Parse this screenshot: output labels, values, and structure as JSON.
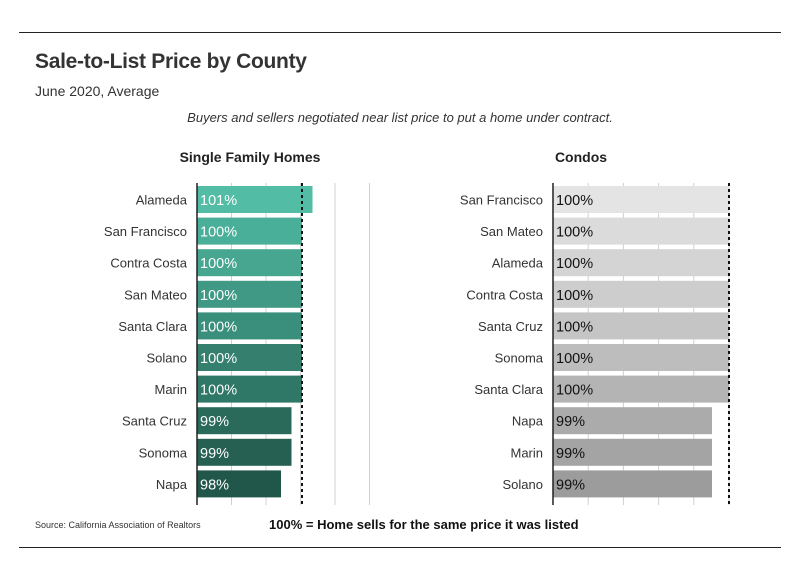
{
  "header": {
    "title": "Sale-to-List Price by County",
    "subtitle": "June 2020, Average",
    "note": "Buyers and sellers negotiated near list price to put a home under contract."
  },
  "footer": {
    "source": "Source:  California Association of Realtors",
    "legend_note": "100% = Home sells for the same price it was listed"
  },
  "chart_data": [
    {
      "type": "bar",
      "orientation": "horizontal",
      "title": "Single Family Homes",
      "categories": [
        "Alameda",
        "San Francisco",
        "Contra Costa",
        "San Mateo",
        "Santa Clara",
        "Solano",
        "Marin",
        "Santa Cruz",
        "Sonoma",
        "Napa"
      ],
      "values": [
        101,
        100,
        100,
        100,
        100,
        100,
        100,
        99,
        99,
        98
      ],
      "value_labels": [
        "101%",
        "100%",
        "100%",
        "100%",
        "100%",
        "100%",
        "100%",
        "99%",
        "99%",
        "98%"
      ],
      "reference_line": 100,
      "colors": [
        "#52bca5",
        "#4aaf98",
        "#46a690",
        "#3f9985",
        "#3a8f7c",
        "#357f6e",
        "#2f7867",
        "#2a6a5b",
        "#266052",
        "#21574a"
      ]
    },
    {
      "type": "bar",
      "orientation": "horizontal",
      "title": "Condos",
      "categories": [
        "San Francisco",
        "San Mateo",
        "Alameda",
        "Contra Costa",
        "Santa Cruz",
        "Sonoma",
        "Santa Clara",
        "Napa",
        "Marin",
        "Solano"
      ],
      "values": [
        100,
        100,
        100,
        100,
        100,
        100,
        100,
        99,
        99,
        99
      ],
      "value_labels": [
        "100%",
        "100%",
        "100%",
        "100%",
        "100%",
        "100%",
        "100%",
        "99%",
        "99%",
        "99%"
      ],
      "reference_line": 100,
      "colors": [
        "#e4e4e4",
        "#dbdbdb",
        "#d4d4d4",
        "#cdcdcd",
        "#c5c5c5",
        "#bdbdbd",
        "#b4b4b4",
        "#ababab",
        "#a4a4a4",
        "#9c9c9c"
      ]
    }
  ]
}
